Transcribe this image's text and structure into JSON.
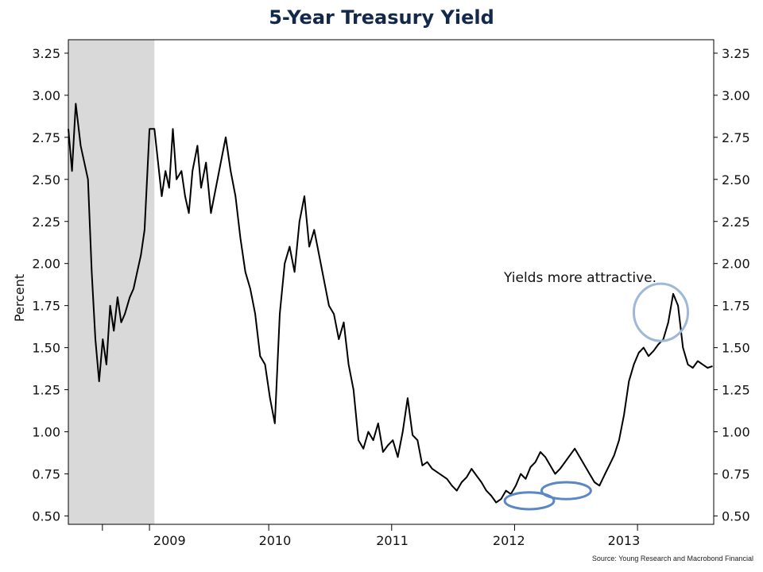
{
  "chart_data": {
    "type": "line",
    "title": "5-Year Treasury Yield",
    "ylabel": "Percent",
    "xlabel": "",
    "ylim": [
      0.45,
      3.33
    ],
    "xlim": [
      2008.3,
      2013.55
    ],
    "yticks": [
      0.5,
      0.75,
      1.0,
      1.25,
      1.5,
      1.75,
      2.0,
      2.25,
      2.5,
      2.75,
      3.0,
      3.25
    ],
    "ytick_labels": [
      "0.50",
      "0.75",
      "1.00",
      "1.25",
      "1.50",
      "1.75",
      "2.00",
      "2.25",
      "2.50",
      "2.75",
      "3.00",
      "3.25"
    ],
    "x_ticks": [
      2008.3,
      2009.0,
      2010.0,
      2011.0,
      2012.0,
      2013.0
    ],
    "x_tick_labels": [
      "",
      "2009",
      "2010",
      "2011",
      "2012",
      "2013"
    ],
    "grid": false,
    "recession_shading": [
      2008.3,
      2009.0
    ],
    "series": [
      {
        "color": "#000000",
        "x": [
          2008.3,
          2008.33,
          2008.36,
          2008.4,
          2008.43,
          2008.46,
          2008.49,
          2008.52,
          2008.55,
          2008.58,
          2008.61,
          2008.64,
          2008.67,
          2008.7,
          2008.73,
          2008.76,
          2008.8,
          2008.83,
          2008.86,
          2008.89,
          2008.92,
          2008.96,
          2009.0,
          2009.03,
          2009.06,
          2009.09,
          2009.12,
          2009.15,
          2009.18,
          2009.22,
          2009.25,
          2009.28,
          2009.31,
          2009.35,
          2009.38,
          2009.42,
          2009.46,
          2009.5,
          2009.54,
          2009.58,
          2009.62,
          2009.66,
          2009.7,
          2009.74,
          2009.78,
          2009.82,
          2009.86,
          2009.9,
          2009.94,
          2009.98,
          2010.02,
          2010.06,
          2010.1,
          2010.14,
          2010.18,
          2010.22,
          2010.26,
          2010.3,
          2010.34,
          2010.38,
          2010.42,
          2010.46,
          2010.5,
          2010.54,
          2010.58,
          2010.62,
          2010.66,
          2010.7,
          2010.74,
          2010.78,
          2010.82,
          2010.86,
          2010.9,
          2010.94,
          2010.98,
          2011.02,
          2011.06,
          2011.1,
          2011.14,
          2011.18,
          2011.22,
          2011.26,
          2011.3,
          2011.34,
          2011.38,
          2011.42,
          2011.46,
          2011.5,
          2011.54,
          2011.58,
          2011.62,
          2011.66,
          2011.7,
          2011.74,
          2011.78,
          2011.82,
          2011.86,
          2011.9,
          2011.94,
          2011.98,
          2012.02,
          2012.06,
          2012.1,
          2012.14,
          2012.18,
          2012.22,
          2012.26,
          2012.3,
          2012.34,
          2012.38,
          2012.42,
          2012.46,
          2012.5,
          2012.54,
          2012.58,
          2012.62,
          2012.66,
          2012.7,
          2012.74,
          2012.78,
          2012.82,
          2012.86,
          2012.9,
          2012.94,
          2012.98,
          2013.02,
          2013.06,
          2013.1,
          2013.14,
          2013.18,
          2013.22,
          2013.26,
          2013.3,
          2013.34,
          2013.38,
          2013.42,
          2013.46,
          2013.5,
          2013.54
        ],
        "values": [
          2.8,
          2.55,
          2.95,
          2.7,
          2.6,
          2.5,
          1.95,
          1.55,
          1.3,
          1.55,
          1.4,
          1.75,
          1.6,
          1.8,
          1.65,
          1.7,
          1.8,
          1.85,
          1.95,
          2.05,
          2.2,
          2.8,
          2.8,
          2.6,
          2.4,
          2.55,
          2.45,
          2.8,
          2.5,
          2.55,
          2.4,
          2.3,
          2.55,
          2.7,
          2.45,
          2.6,
          2.3,
          2.45,
          2.6,
          2.75,
          2.55,
          2.4,
          2.15,
          1.95,
          1.85,
          1.7,
          1.45,
          1.4,
          1.2,
          1.05,
          1.7,
          2.0,
          2.1,
          1.95,
          2.25,
          2.4,
          2.1,
          2.2,
          2.05,
          1.9,
          1.75,
          1.7,
          1.55,
          1.65,
          1.4,
          1.25,
          0.95,
          0.9,
          1.0,
          0.95,
          1.05,
          0.88,
          0.92,
          0.95,
          0.85,
          1.0,
          1.2,
          0.98,
          0.95,
          0.8,
          0.82,
          0.78,
          0.76,
          0.74,
          0.72,
          0.68,
          0.65,
          0.7,
          0.73,
          0.78,
          0.74,
          0.7,
          0.65,
          0.62,
          0.58,
          0.6,
          0.65,
          0.63,
          0.68,
          0.75,
          0.72,
          0.79,
          0.82,
          0.88,
          0.85,
          0.8,
          0.75,
          0.78,
          0.82,
          0.86,
          0.9,
          0.85,
          0.8,
          0.75,
          0.7,
          0.68,
          0.74,
          0.8,
          0.86,
          0.95,
          1.1,
          1.3,
          1.4,
          1.47,
          1.5,
          1.45,
          1.48,
          1.52,
          1.55,
          1.65,
          1.82,
          1.75,
          1.5,
          1.4,
          1.38,
          1.42,
          1.4,
          1.38,
          1.39
        ]
      }
    ],
    "annotations": [
      {
        "text": "Yields more attractive.",
        "x": 2013.13,
        "y": 1.88
      }
    ],
    "highlight_ellipses": [
      {
        "x": 2013.12,
        "y": 1.71,
        "rx": 0.22,
        "ry": 0.17,
        "color": "#9fb8d8"
      },
      {
        "x": 2012.05,
        "y": 0.59,
        "rx": 0.2,
        "ry": 0.05,
        "color": "#5b87c5"
      },
      {
        "x": 2012.35,
        "y": 0.65,
        "rx": 0.2,
        "ry": 0.05,
        "color": "#5b87c5"
      }
    ],
    "recession_color": "#d9d9d9",
    "source": "Source: Young Research and Macrobond Financial"
  }
}
